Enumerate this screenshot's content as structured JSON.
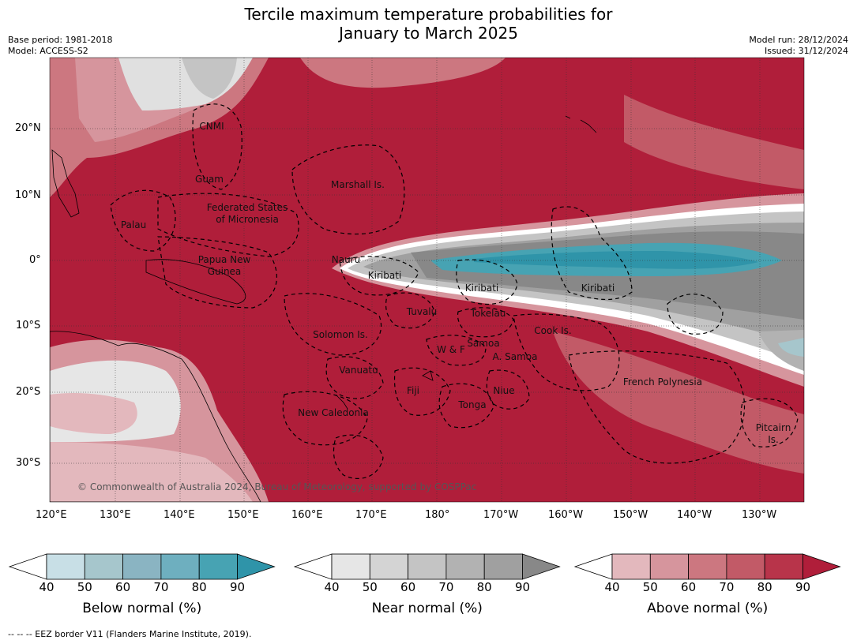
{
  "header": {
    "title_line1": "Tercile maximum temperature probabilities for",
    "title_line2": "January to March 2025",
    "base_period": "Base period: 1981-2018",
    "model": "Model: ACCESS-S2",
    "model_run": "Model run: 28/12/2024",
    "issued": "Issued: 31/12/2024"
  },
  "map": {
    "lat_labels": [
      "20°N",
      "10°N",
      "0°",
      "10°S",
      "20°S",
      "30°S"
    ],
    "lon_labels": [
      "120°E",
      "130°E",
      "140°E",
      "150°E",
      "160°E",
      "170°E",
      "180°",
      "170°W",
      "160°W",
      "150°W",
      "140°W",
      "130°W"
    ],
    "places": [
      "CNMI",
      "Guam",
      "Marshall Is.",
      "Federated States",
      "of Micronesia",
      "Palau",
      "Papua New",
      "Guinea",
      "Nauru",
      "Kiribati",
      "Kiribati",
      "Kiribati",
      "Tuvalu",
      "Tokelau",
      "Cook Is.",
      "Solomon Is.",
      "Samoa",
      "W & F",
      "A. Samoa",
      "Vanuatu",
      "Fiji",
      "Niue",
      "Tonga",
      "French Polynesia",
      "New Caledonia",
      "Pitcairn",
      "Is."
    ],
    "copyright": "© Commonwealth of Australia 2024, Bureau of Meteorology, supported by COSPPac"
  },
  "colorbars": [
    {
      "label": "Below normal (%)",
      "ticks": [
        "40",
        "50",
        "60",
        "70",
        "80",
        "90"
      ],
      "colors": [
        "#ffffff",
        "#c8dfe6",
        "#a6c6cc",
        "#8ab4c2",
        "#6eafbf",
        "#47a3b3",
        "#2f94a9"
      ]
    },
    {
      "label": "Near normal (%)",
      "ticks": [
        "40",
        "50",
        "60",
        "70",
        "80",
        "90"
      ],
      "colors": [
        "#ffffff",
        "#e6e6e6",
        "#d4d4d4",
        "#c4c4c4",
        "#b2b2b2",
        "#a0a0a0",
        "#888888"
      ]
    },
    {
      "label": "Above normal (%)",
      "ticks": [
        "40",
        "50",
        "60",
        "70",
        "80",
        "90"
      ],
      "colors": [
        "#ffffff",
        "#e3b8bd",
        "#d6959d",
        "#cc7780",
        "#c25a67",
        "#b8344a",
        "#b01e3a"
      ]
    }
  ],
  "footer": "-- -- -- EEZ border V11 (Flanders Marine Institute, 2019)."
}
